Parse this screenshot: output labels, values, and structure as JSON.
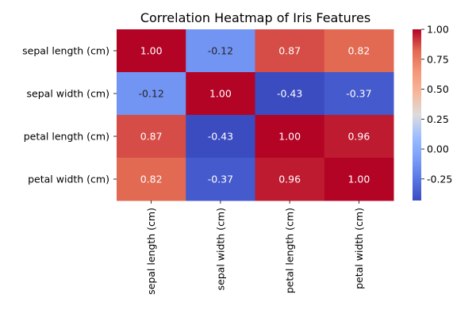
{
  "chart_data": {
    "type": "heatmap",
    "title": "Correlation Heatmap of Iris Features",
    "rows": [
      "sepal length (cm)",
      "sepal width (cm)",
      "petal length (cm)",
      "petal width (cm)"
    ],
    "columns": [
      "sepal length (cm)",
      "sepal width (cm)",
      "petal length (cm)",
      "petal width (cm)"
    ],
    "values": [
      [
        1.0,
        -0.12,
        0.87,
        0.82
      ],
      [
        -0.12,
        1.0,
        -0.43,
        -0.37
      ],
      [
        0.87,
        -0.43,
        1.0,
        0.96
      ],
      [
        0.82,
        -0.37,
        0.96,
        1.0
      ]
    ],
    "value_labels": [
      [
        "1.00",
        "-0.12",
        "0.87",
        "0.82"
      ],
      [
        "-0.12",
        "1.00",
        "-0.43",
        "-0.37"
      ],
      [
        "0.87",
        "-0.43",
        "1.00",
        "0.96"
      ],
      [
        "0.82",
        "-0.37",
        "0.96",
        "1.00"
      ]
    ],
    "colormap": "coolwarm",
    "color_range": [
      -0.43,
      1.0
    ],
    "colorbar_ticks": [
      "1.00",
      "0.75",
      "0.50",
      "0.25",
      "0.00",
      "-0.25"
    ],
    "colorbar_tick_values": [
      1.0,
      0.75,
      0.5,
      0.25,
      0.0,
      -0.25
    ],
    "legend": "right"
  }
}
